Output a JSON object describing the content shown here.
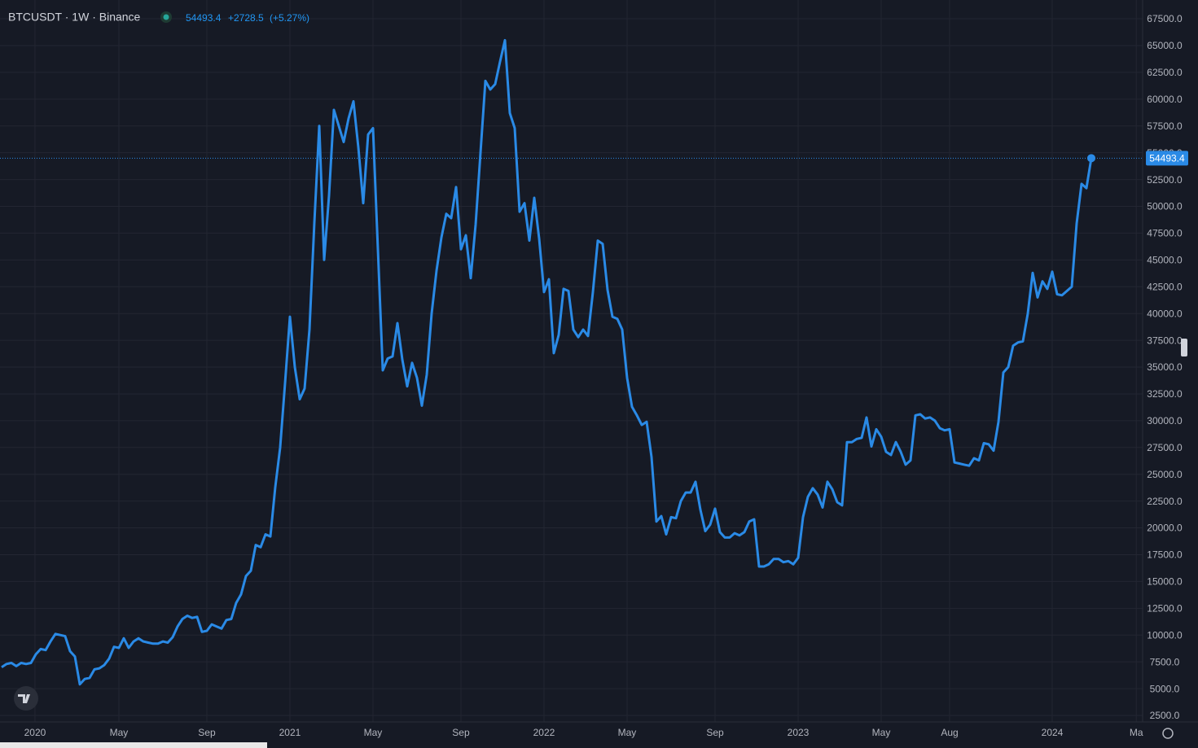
{
  "header": {
    "symbol": "BTCUSDT · 1W · Binance",
    "change": "+2728.5",
    "change_percent": "(+5.27%)"
  },
  "chart_data": {
    "type": "line",
    "color": "#2a8ae6",
    "grid": true,
    "values": [
      7000,
      7300,
      7400,
      7100,
      7400,
      7300,
      7400,
      8200,
      8700,
      8600,
      9400,
      10100,
      10000,
      9900,
      8500,
      8000,
      5400,
      5900,
      6000,
      6800,
      6900,
      7200,
      7800,
      8900,
      8800,
      9700,
      8800,
      9400,
      9700,
      9400,
      9300,
      9200,
      9200,
      9400,
      9300,
      9800,
      10800,
      11500,
      11800,
      11600,
      11700,
      10300,
      10400,
      11000,
      10800,
      10600,
      11400,
      11500,
      13000,
      13800,
      15500,
      16000,
      18400,
      18200,
      19400,
      19200,
      23800,
      27500,
      33500,
      39700,
      35000,
      32000,
      33000,
      38500,
      48500,
      57500,
      45000,
      51000,
      59000,
      57500,
      56000,
      58200,
      59800,
      55500,
      50300,
      56700,
      57300,
      46000,
      34700,
      35800,
      36000,
      39100,
      35700,
      33200,
      35400,
      34000,
      31400,
      34300,
      40000,
      44000,
      47100,
      49300,
      48900,
      51800,
      46000,
      47300,
      43300,
      48300,
      55000,
      61700,
      60900,
      61400,
      63500,
      65500,
      58700,
      57300,
      49500,
      50300,
      46800,
      50800,
      47000,
      42000,
      43200,
      36300,
      38000,
      42300,
      42100,
      38500,
      37800,
      38500,
      37900,
      42000,
      46800,
      46500,
      42200,
      39700,
      39500,
      38500,
      34000,
      31300,
      30500,
      29600,
      29900,
      26600,
      20600,
      21100,
      19400,
      21000,
      20900,
      22500,
      23300,
      23300,
      24300,
      21700,
      19700,
      20300,
      21800,
      19600,
      19100,
      19100,
      19500,
      19300,
      19600,
      20600,
      20800,
      16400,
      16400,
      16600,
      17100,
      17100,
      16800,
      16900,
      16600,
      17200,
      21000,
      22900,
      23700,
      23100,
      21900,
      24300,
      23600,
      22400,
      22100,
      28000,
      28000,
      28300,
      28400,
      30300,
      27600,
      29200,
      28500,
      27100,
      26800,
      28000,
      27100,
      25900,
      26300,
      30500,
      30600,
      30200,
      30300,
      30000,
      29300,
      29100,
      29200,
      26100,
      26000,
      25900,
      25800,
      26500,
      26300,
      27900,
      27800,
      27200,
      29900,
      34500,
      35000,
      37000,
      37300,
      37400,
      40000,
      43800,
      41500,
      43000,
      42300,
      43900,
      41800,
      41700,
      42100,
      42500,
      48400,
      52100,
      51700,
      54493.4
    ],
    "xlim": [
      -0.33,
      233.5
    ],
    "xticks": [
      {
        "value": 6.83,
        "label": "2020"
      },
      {
        "value": 24,
        "label": "May"
      },
      {
        "value": 42,
        "label": "Sep"
      },
      {
        "value": 59,
        "label": "2021"
      },
      {
        "value": 76,
        "label": "May"
      },
      {
        "value": 94,
        "label": "Sep"
      },
      {
        "value": 111,
        "label": "2022"
      },
      {
        "value": 128,
        "label": "May"
      },
      {
        "value": 146,
        "label": "Sep"
      },
      {
        "value": 163,
        "label": "2023"
      },
      {
        "value": 180,
        "label": "May"
      },
      {
        "value": 194,
        "label": "Aug"
      },
      {
        "value": 215,
        "label": "2024"
      },
      {
        "value": 232.2,
        "label": "Ma"
      }
    ],
    "ylim": [
      1893,
      69251
    ],
    "yticks": [
      {
        "value": 2500,
        "label": "2500.0"
      },
      {
        "value": 5000,
        "label": "5000.0"
      },
      {
        "value": 7500,
        "label": "7500.0"
      },
      {
        "value": 10000,
        "label": "10000.0"
      },
      {
        "value": 12500,
        "label": "12500.0"
      },
      {
        "value": 15000,
        "label": "15000.0"
      },
      {
        "value": 17500,
        "label": "17500.0"
      },
      {
        "value": 20000,
        "label": "20000.0"
      },
      {
        "value": 22500,
        "label": "22500.0"
      },
      {
        "value": 25000,
        "label": "25000.0"
      },
      {
        "value": 27500,
        "label": "27500.0"
      },
      {
        "value": 30000,
        "label": "30000.0"
      },
      {
        "value": 32500,
        "label": "32500.0"
      },
      {
        "value": 35000,
        "label": "35000.0"
      },
      {
        "value": 37500,
        "label": "37500.0"
      },
      {
        "value": 40000,
        "label": "40000.0"
      },
      {
        "value": 42500,
        "label": "42500.0"
      },
      {
        "value": 45000,
        "label": "45000.0"
      },
      {
        "value": 47500,
        "label": "47500.0"
      },
      {
        "value": 50000,
        "label": "50000.0"
      },
      {
        "value": 52500,
        "label": "52500.0"
      },
      {
        "value": 55000,
        "label": "55000.0"
      },
      {
        "value": 57500,
        "label": "57500.0"
      },
      {
        "value": 60000,
        "label": "60000.0"
      },
      {
        "value": 62500,
        "label": "62500.0"
      },
      {
        "value": 65000,
        "label": "65000.0"
      },
      {
        "value": 67500,
        "label": "67500.0"
      }
    ]
  }
}
